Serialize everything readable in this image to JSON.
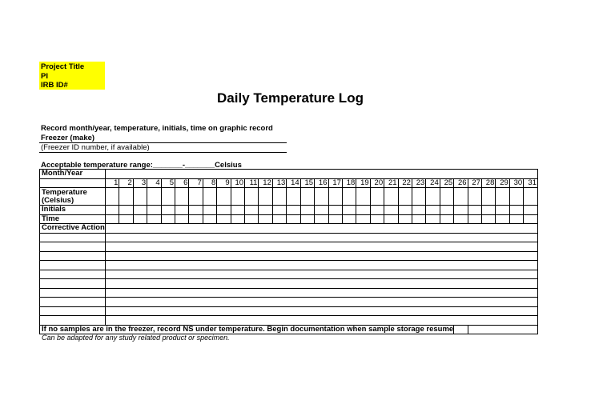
{
  "header_box": {
    "project_title": "Project Title",
    "pi": "PI",
    "irb_id": "IRB ID#",
    "color": "#ffff00"
  },
  "title": "Daily Temperature Log",
  "instructions": "Record month/year, temperature, initials, time on graphic record",
  "freezer_make": "Freezer (make)",
  "freezer_id": "(Freezer ID number, if available)",
  "temp_range": {
    "label": "Acceptable temperature range:",
    "low": "_______",
    "sep": "-",
    "high": "_______",
    "unit": "Celsius"
  },
  "table": {
    "month_year": "Month/Year",
    "days": [
      "1",
      "2",
      "3",
      "4",
      "5",
      "6",
      "7",
      "8",
      "9",
      "10",
      "11",
      "12",
      "13",
      "14",
      "15",
      "16",
      "17",
      "18",
      "19",
      "20",
      "21",
      "22",
      "23",
      "24",
      "25",
      "26",
      "27",
      "28",
      "29",
      "30",
      "31"
    ],
    "temperature": "Temperature",
    "celsius": "(Celsius)",
    "initials": "Initials",
    "time": "Time",
    "corrective_action": "Corrective Action",
    "footer": "If no samples are in the freezer, record NS under temperature. Begin documentation when sample storage resumes."
  },
  "note": "Can be adapted for any study related product or specimen."
}
